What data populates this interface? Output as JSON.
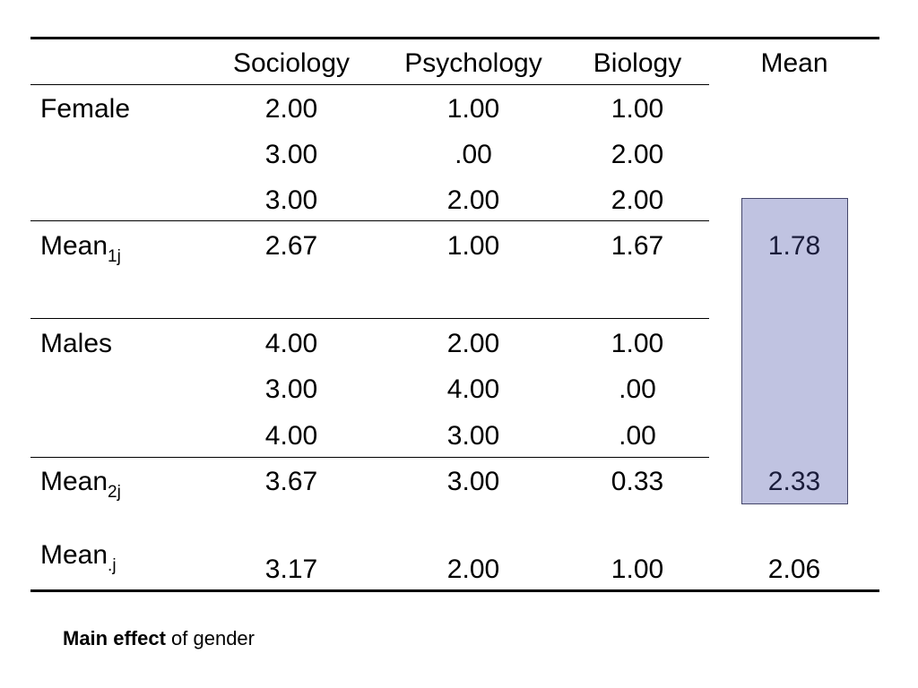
{
  "columns": [
    "Sociology",
    "Psychology",
    "Biology",
    "Mean"
  ],
  "female": {
    "label": "Female",
    "rows": [
      [
        "2.00",
        "1.00",
        "1.00"
      ],
      [
        "3.00",
        ".00",
        "2.00"
      ],
      [
        "3.00",
        "2.00",
        "2.00"
      ]
    ]
  },
  "mean1": {
    "label": "Mean",
    "subscript": "1j",
    "values": [
      "2.67",
      "1.00",
      "1.67"
    ],
    "row_mean": "1.78"
  },
  "males": {
    "label": "Males",
    "rows": [
      [
        "4.00",
        "2.00",
        "1.00"
      ],
      [
        "3.00",
        "4.00",
        ".00"
      ],
      [
        "4.00",
        "3.00",
        ".00"
      ]
    ]
  },
  "mean2": {
    "label": "Mean",
    "subscript": "2j",
    "values": [
      "3.67",
      "3.00",
      "0.33"
    ],
    "row_mean": "2.33"
  },
  "mean_col": {
    "label": "Mean",
    "subscript": ".j",
    "values": [
      "3.17",
      "2.00",
      "1.00"
    ],
    "grand_mean": "2.06"
  },
  "caption": {
    "bold": "Main effect",
    "rest": " of gender"
  },
  "colors": {
    "highlight_fill": "#c0c3e1",
    "highlight_border": "#44466a"
  }
}
